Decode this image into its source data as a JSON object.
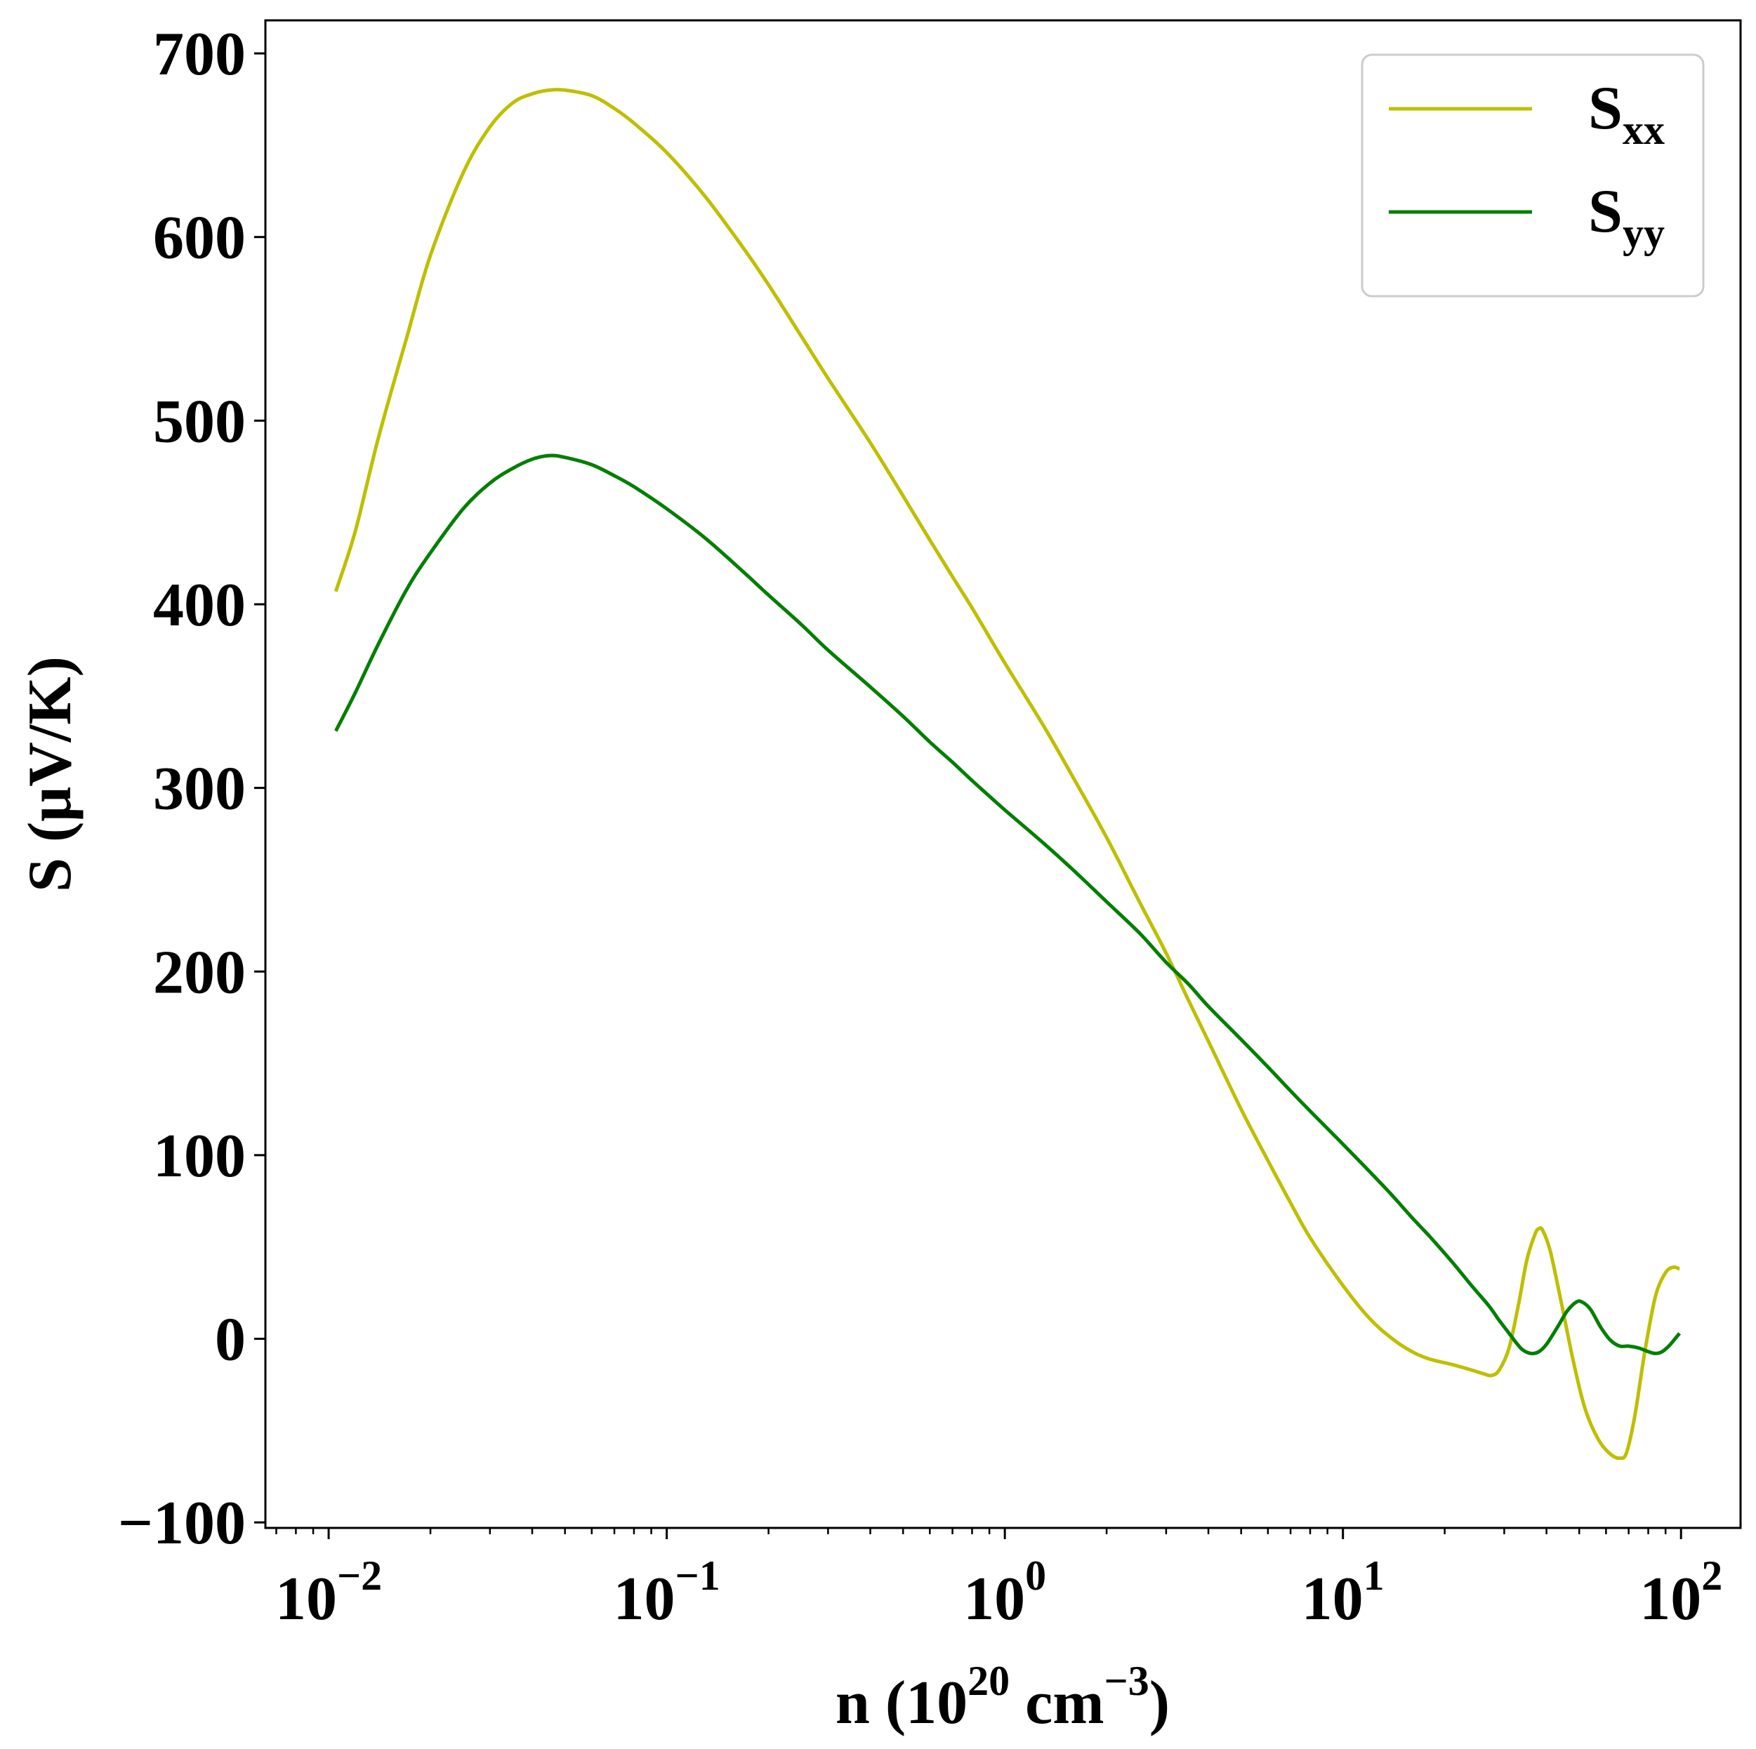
{
  "chart_data": {
    "type": "line",
    "x_scale": "log",
    "xlim": [
      0.0065,
      150
    ],
    "ylim": [
      -103,
      718
    ],
    "xlabel": {
      "text": "n (10",
      "sup1": "20",
      "mid": " cm",
      "sup2": "−3",
      "end": ")"
    },
    "ylabel": "S (μV/K)",
    "y_ticks": [
      -100,
      0,
      100,
      200,
      300,
      400,
      500,
      600,
      700
    ],
    "y_tick_labels": [
      "−100",
      "0",
      "100",
      "200",
      "300",
      "400",
      "500",
      "600",
      "700"
    ],
    "x_ticks": [
      {
        "value": 0.01,
        "base": "10",
        "exp": "−2"
      },
      {
        "value": 0.1,
        "base": "10",
        "exp": "−1"
      },
      {
        "value": 1,
        "base": "10",
        "exp": "0"
      },
      {
        "value": 10,
        "base": "10",
        "exp": "1"
      },
      {
        "value": 100,
        "base": "10",
        "exp": "2"
      }
    ],
    "legend": {
      "position": "top-right"
    },
    "grid": false,
    "series": [
      {
        "name": "S",
        "name_sub": "xx",
        "color": "#bfbf00",
        "points": [
          [
            0.0105,
            407
          ],
          [
            0.012,
            440
          ],
          [
            0.014,
            490
          ],
          [
            0.017,
            545
          ],
          [
            0.02,
            590
          ],
          [
            0.025,
            635
          ],
          [
            0.03,
            660
          ],
          [
            0.035,
            673
          ],
          [
            0.04,
            678
          ],
          [
            0.045,
            680
          ],
          [
            0.05,
            680
          ],
          [
            0.06,
            677
          ],
          [
            0.07,
            670
          ],
          [
            0.08,
            662
          ],
          [
            0.1,
            646
          ],
          [
            0.13,
            622
          ],
          [
            0.17,
            593
          ],
          [
            0.2,
            574
          ],
          [
            0.25,
            546
          ],
          [
            0.3,
            523
          ],
          [
            0.4,
            488
          ],
          [
            0.5,
            459
          ],
          [
            0.6,
            435
          ],
          [
            0.7,
            415
          ],
          [
            0.8,
            398
          ],
          [
            1.0,
            368
          ],
          [
            1.3,
            334
          ],
          [
            1.6,
            305
          ],
          [
            2.0,
            273
          ],
          [
            2.5,
            238
          ],
          [
            3.0,
            210
          ],
          [
            3.5,
            184
          ],
          [
            4.0,
            162
          ],
          [
            5.0,
            125
          ],
          [
            6.0,
            97
          ],
          [
            7.0,
            74
          ],
          [
            8.0,
            55
          ],
          [
            10,
            29
          ],
          [
            12,
            11
          ],
          [
            14,
            0
          ],
          [
            16,
            -7
          ],
          [
            18,
            -11
          ],
          [
            21,
            -14
          ],
          [
            24,
            -17
          ],
          [
            26,
            -19
          ],
          [
            27.5,
            -20
          ],
          [
            29,
            -17
          ],
          [
            31,
            -5
          ],
          [
            33,
            18
          ],
          [
            35,
            43
          ],
          [
            37,
            57
          ],
          [
            38,
            60
          ],
          [
            39,
            59
          ],
          [
            41,
            48
          ],
          [
            44,
            22
          ],
          [
            48,
            -12
          ],
          [
            52,
            -38
          ],
          [
            57,
            -55
          ],
          [
            62,
            -63
          ],
          [
            66,
            -65
          ],
          [
            69,
            -62
          ],
          [
            73,
            -42
          ],
          [
            78,
            -8
          ],
          [
            84,
            23
          ],
          [
            90,
            36
          ],
          [
            95,
            39
          ],
          [
            99,
            38
          ]
        ]
      },
      {
        "name": "S",
        "name_sub": "yy",
        "color": "#007f00",
        "points": [
          [
            0.0105,
            331
          ],
          [
            0.012,
            352
          ],
          [
            0.014,
            378
          ],
          [
            0.017,
            408
          ],
          [
            0.02,
            428
          ],
          [
            0.025,
            452
          ],
          [
            0.03,
            466
          ],
          [
            0.035,
            474
          ],
          [
            0.04,
            479
          ],
          [
            0.045,
            481
          ],
          [
            0.05,
            480
          ],
          [
            0.06,
            476
          ],
          [
            0.07,
            470
          ],
          [
            0.08,
            464
          ],
          [
            0.1,
            452
          ],
          [
            0.13,
            436
          ],
          [
            0.17,
            417
          ],
          [
            0.2,
            405
          ],
          [
            0.25,
            389
          ],
          [
            0.3,
            375
          ],
          [
            0.4,
            355
          ],
          [
            0.5,
            339
          ],
          [
            0.6,
            325
          ],
          [
            0.7,
            314
          ],
          [
            0.8,
            304
          ],
          [
            1.0,
            288
          ],
          [
            1.3,
            270
          ],
          [
            1.6,
            255
          ],
          [
            2.0,
            238
          ],
          [
            2.5,
            221
          ],
          [
            3.0,
            205
          ],
          [
            3.5,
            193
          ],
          [
            4.0,
            181
          ],
          [
            5.0,
            163
          ],
          [
            6.0,
            148
          ],
          [
            7.0,
            135
          ],
          [
            8.0,
            124
          ],
          [
            10,
            106
          ],
          [
            12,
            91
          ],
          [
            14,
            78
          ],
          [
            16,
            66
          ],
          [
            18,
            56
          ],
          [
            21,
            42
          ],
          [
            24,
            29
          ],
          [
            27,
            18
          ],
          [
            29,
            10
          ],
          [
            31,
            3
          ],
          [
            32.5,
            -2
          ],
          [
            34,
            -6
          ],
          [
            36,
            -8
          ],
          [
            38,
            -7
          ],
          [
            40,
            -3
          ],
          [
            43,
            6
          ],
          [
            46,
            15
          ],
          [
            49,
            20
          ],
          [
            51,
            20
          ],
          [
            54,
            16
          ],
          [
            58,
            6
          ],
          [
            62,
            -1
          ],
          [
            66,
            -4
          ],
          [
            70,
            -4
          ],
          [
            75,
            -5
          ],
          [
            80,
            -7
          ],
          [
            84,
            -8
          ],
          [
            88,
            -7
          ],
          [
            92,
            -4
          ],
          [
            96,
            0
          ],
          [
            99,
            3
          ]
        ]
      }
    ]
  }
}
